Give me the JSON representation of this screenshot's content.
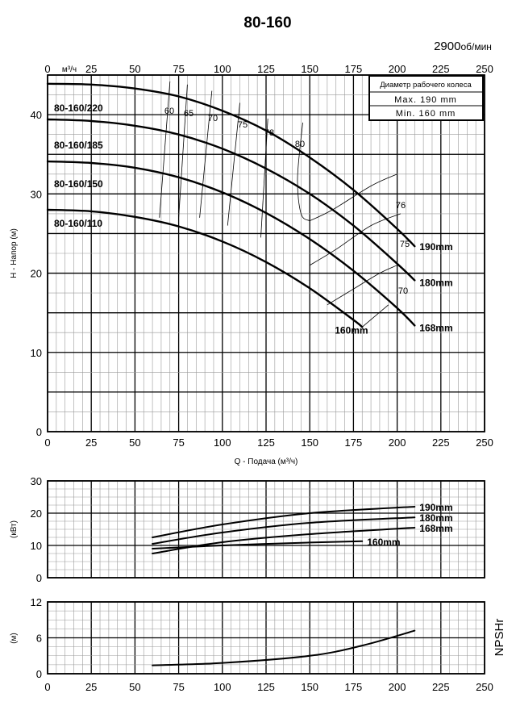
{
  "header": {
    "title": "80-160",
    "speed_value": "2900",
    "speed_unit": "об/мин"
  },
  "legend_box": {
    "title": "Диаметр рабочего колеса",
    "max": "Max. 190 mm",
    "min": "Min. 160 mm"
  },
  "top_axis_unit": "м³/ч",
  "colors": {
    "ink": "#000000",
    "grid": "#9a9a9a",
    "background": "#ffffff"
  },
  "chart_data": [
    {
      "type": "line",
      "title": "",
      "xlabel": "Q - Подача (м³/ч)",
      "ylabel": "H - Напор (м)",
      "xlim": [
        0,
        250
      ],
      "ylim": [
        0,
        45
      ],
      "x_ticks": [
        0,
        25,
        50,
        75,
        100,
        125,
        150,
        175,
        200,
        225,
        250
      ],
      "y_ticks": [
        0,
        10,
        20,
        30,
        40
      ],
      "grid": true,
      "series": [
        {
          "name": "80-160/220",
          "end_label": "190mm",
          "x": [
            0,
            25,
            50,
            75,
            100,
            125,
            150,
            175,
            200,
            210
          ],
          "y": [
            43.9,
            43.8,
            43.3,
            42.3,
            40.5,
            38.0,
            34.6,
            30.5,
            25.6,
            23.4
          ]
        },
        {
          "name": "80-160/185",
          "end_label": "180mm",
          "x": [
            0,
            25,
            50,
            75,
            100,
            125,
            150,
            175,
            200,
            210
          ],
          "y": [
            39.4,
            39.2,
            38.6,
            37.5,
            35.7,
            33.2,
            30.0,
            26.0,
            21.2,
            19.1
          ]
        },
        {
          "name": "80-160/150",
          "end_label": "168mm",
          "x": [
            0,
            25,
            50,
            75,
            100,
            125,
            150,
            175,
            200,
            210
          ],
          "y": [
            34.1,
            33.9,
            33.3,
            32.1,
            30.2,
            27.6,
            24.3,
            20.3,
            15.6,
            13.4
          ]
        },
        {
          "name": "80-160/110",
          "end_label": "160mm",
          "x": [
            0,
            25,
            50,
            75,
            100,
            125,
            150,
            175,
            180
          ],
          "y": [
            28.0,
            27.8,
            27.1,
            25.9,
            24.0,
            21.4,
            18.1,
            14.1,
            13.2
          ]
        }
      ],
      "efficiency_isolines": [
        {
          "label": "60",
          "x": [
            70,
            64
          ],
          "y": [
            44.2,
            27.0
          ]
        },
        {
          "label": "65",
          "x": [
            80,
            75
          ],
          "y": [
            43.8,
            27.0
          ]
        },
        {
          "label": "70",
          "x": [
            94,
            87
          ],
          "y": [
            43.0,
            27.0
          ]
        },
        {
          "label": "75",
          "x": [
            110,
            103
          ],
          "y": [
            41.5,
            26.0
          ]
        },
        {
          "label": "78",
          "x": [
            126,
            122
          ],
          "y": [
            39.5,
            24.5
          ]
        },
        {
          "label": "80",
          "x": [
            146,
            143,
            145,
            150
          ],
          "y": [
            39.0,
            32.0,
            27.5,
            26.6
          ]
        },
        {
          "label": "76",
          "x": [
            150,
            163,
            185,
            200
          ],
          "y": [
            26.6,
            28.0,
            31.0,
            32.5
          ]
        },
        {
          "label": "75",
          "x": [
            150,
            165,
            185,
            202
          ],
          "y": [
            21.0,
            23.0,
            26.0,
            27.5
          ]
        },
        {
          "label": "70",
          "x": [
            160,
            175,
            190,
            200
          ],
          "y": [
            16.0,
            18.0,
            20.0,
            21.0
          ]
        },
        {
          "label": "",
          "x": [
            180,
            195
          ],
          "y": [
            13.2,
            16.0
          ]
        }
      ]
    },
    {
      "type": "line",
      "title": "",
      "xlabel": "",
      "ylabel": "(кВт)",
      "xlim": [
        0,
        250
      ],
      "ylim": [
        0,
        30
      ],
      "y_ticks": [
        0,
        10,
        20,
        30
      ],
      "grid": true,
      "series": [
        {
          "name": "190mm",
          "x": [
            60,
            100,
            150,
            210
          ],
          "y": [
            12.5,
            16.5,
            20.0,
            22.0
          ]
        },
        {
          "name": "180mm",
          "x": [
            60,
            100,
            150,
            210
          ],
          "y": [
            10.5,
            14.0,
            17.0,
            18.7
          ]
        },
        {
          "name": "168mm",
          "x": [
            60,
            100,
            150,
            210
          ],
          "y": [
            7.5,
            11.0,
            13.5,
            15.5
          ]
        },
        {
          "name": "160mm",
          "x": [
            60,
            100,
            150,
            180
          ],
          "y": [
            9.0,
            10.0,
            10.9,
            11.3
          ]
        }
      ]
    },
    {
      "type": "line",
      "title": "",
      "xlabel": "",
      "ylabel": "(м)",
      "right_label": "NPSHr",
      "xlim": [
        0,
        250
      ],
      "ylim": [
        0,
        12
      ],
      "x_ticks": [
        0,
        25,
        50,
        75,
        100,
        125,
        150,
        175,
        200,
        225,
        250
      ],
      "y_ticks": [
        0,
        6,
        12
      ],
      "grid": true,
      "series": [
        {
          "name": "NPSHr",
          "x": [
            60,
            100,
            150,
            180,
            210
          ],
          "y": [
            1.4,
            1.8,
            3.0,
            4.7,
            7.2
          ]
        }
      ]
    }
  ]
}
